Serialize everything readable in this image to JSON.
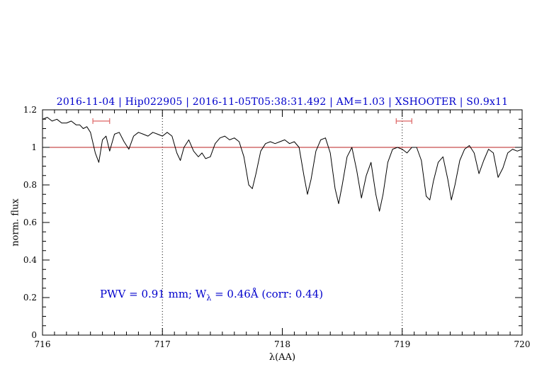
{
  "title": {
    "text": "2016-11-04 | Hip022905 | 2016-11-05T05:38:31.492 | AM=1.03 | XSHOOTER | S0.9x11"
  },
  "annotation": {
    "pre": "PWV = 0.91 mm; W",
    "sub": "λ",
    "post": " = 0.46Å (corr: 0.44)"
  },
  "colors": {
    "title_blue": "#0000cc",
    "annotation_blue": "#0000cc",
    "continuum_red": "#bb2222",
    "marker_red": "#dd6666",
    "spectrum_black": "#000000"
  },
  "chart_data": {
    "type": "line",
    "title": "2016-11-04 | Hip022905 | 2016-11-05T05:38:31.492 | AM=1.03 | XSHOOTER | S0.9x11",
    "xlabel": "λ(AA)",
    "ylabel": "norm. flux",
    "xlim": [
      716,
      720
    ],
    "ylim": [
      0,
      1.2
    ],
    "xticks": [
      716,
      717,
      718,
      719,
      720
    ],
    "yticks": [
      0,
      0.2,
      0.4,
      0.6,
      0.8,
      1,
      1.2
    ],
    "xtick_minor": 0.1,
    "ytick_minor": 0.05,
    "grid": false,
    "legend": "none",
    "reference_line_y": 1.0,
    "dotted_vlines": [
      717,
      719
    ],
    "telluric_markers": [
      {
        "x1": 716.42,
        "x2": 716.56,
        "y": 1.14
      },
      {
        "x1": 718.95,
        "x2": 719.08,
        "y": 1.14
      }
    ],
    "series": [
      {
        "name": "spectrum",
        "x": [
          716.0,
          716.04,
          716.08,
          716.12,
          716.16,
          716.2,
          716.24,
          716.28,
          716.31,
          716.34,
          716.37,
          716.4,
          716.44,
          716.47,
          716.5,
          716.53,
          716.56,
          716.6,
          716.64,
          716.68,
          716.72,
          716.76,
          716.8,
          716.84,
          716.88,
          716.92,
          716.96,
          717.0,
          717.04,
          717.08,
          717.12,
          717.15,
          717.18,
          717.22,
          717.26,
          717.3,
          717.33,
          717.36,
          717.4,
          717.44,
          717.48,
          717.52,
          717.56,
          717.6,
          717.64,
          717.68,
          717.72,
          717.75,
          717.78,
          717.82,
          717.86,
          717.9,
          717.94,
          717.98,
          718.02,
          718.06,
          718.1,
          718.14,
          718.18,
          718.21,
          718.24,
          718.28,
          718.32,
          718.36,
          718.4,
          718.44,
          718.47,
          718.5,
          718.54,
          718.58,
          718.62,
          718.66,
          718.7,
          718.74,
          718.78,
          718.81,
          718.84,
          718.88,
          718.92,
          718.96,
          719.0,
          719.04,
          719.08,
          719.12,
          719.16,
          719.2,
          719.23,
          719.26,
          719.3,
          719.34,
          719.38,
          719.41,
          719.44,
          719.48,
          719.52,
          719.56,
          719.6,
          719.64,
          719.68,
          719.72,
          719.76,
          719.8,
          719.84,
          719.88,
          719.92,
          719.96,
          720.0
        ],
        "y": [
          1.15,
          1.16,
          1.14,
          1.15,
          1.13,
          1.13,
          1.14,
          1.12,
          1.12,
          1.1,
          1.11,
          1.08,
          0.97,
          0.92,
          1.04,
          1.06,
          0.98,
          1.07,
          1.08,
          1.03,
          0.99,
          1.06,
          1.08,
          1.07,
          1.06,
          1.08,
          1.07,
          1.06,
          1.08,
          1.06,
          0.97,
          0.93,
          1.0,
          1.04,
          0.98,
          0.95,
          0.97,
          0.94,
          0.95,
          1.02,
          1.05,
          1.06,
          1.04,
          1.05,
          1.03,
          0.95,
          0.8,
          0.78,
          0.86,
          0.98,
          1.02,
          1.03,
          1.02,
          1.03,
          1.04,
          1.02,
          1.03,
          1.0,
          0.85,
          0.75,
          0.83,
          0.98,
          1.04,
          1.05,
          0.97,
          0.78,
          0.7,
          0.8,
          0.95,
          1.0,
          0.88,
          0.73,
          0.85,
          0.92,
          0.75,
          0.66,
          0.75,
          0.92,
          0.99,
          1.0,
          0.99,
          0.97,
          1.0,
          1.0,
          0.93,
          0.74,
          0.72,
          0.82,
          0.92,
          0.95,
          0.83,
          0.72,
          0.8,
          0.93,
          0.99,
          1.01,
          0.97,
          0.86,
          0.93,
          0.99,
          0.97,
          0.84,
          0.89,
          0.97,
          0.99,
          0.98,
          0.99
        ]
      }
    ]
  }
}
